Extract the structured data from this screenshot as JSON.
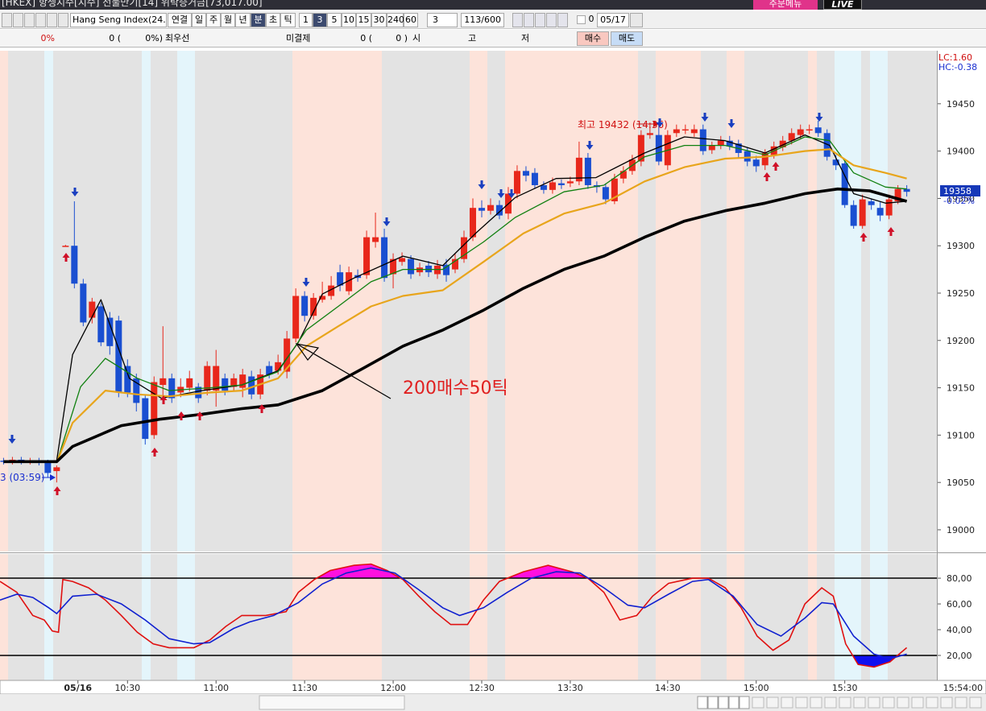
{
  "window": {
    "title": "[HKEX] 항셍지수[지수] 선물만기[14] 위탁증거금[73,017.00]",
    "menu_button": "주문메뉴",
    "live": "LIVE"
  },
  "toolbar": {
    "symbol": "Hang Seng Index(24.0",
    "buttons": [
      "연결",
      "일",
      "주",
      "월",
      "년",
      "분",
      "초",
      "틱",
      "1",
      "3",
      "5",
      "10",
      "15",
      "30",
      "240",
      "60"
    ],
    "period": "3",
    "count": "113/600",
    "check_value": "0",
    "date": "05/17"
  },
  "quote_bar": {
    "rate": "0%",
    "volume": "0 (",
    "volume_rate": "0%)",
    "best": "최우선",
    "open_interest": "미결제",
    "oi_value": "0 (",
    "oi_change": "0 )",
    "open": "시",
    "high": "고",
    "low": "저",
    "buy": "매수",
    "sell": "매도"
  },
  "chart_data": [
    {
      "type": "candlestick",
      "xlim": [
        -0.4,
        105.4
      ],
      "ylim": [
        18977,
        19506
      ],
      "yticks": [
        19000,
        19050,
        19100,
        19150,
        19200,
        19250,
        19300,
        19350,
        19400,
        19450
      ],
      "xticks": [
        {
          "value": 8.4,
          "label": "05/16"
        },
        {
          "value": 14,
          "label": "10:30"
        },
        {
          "value": 24,
          "label": "11:00"
        },
        {
          "value": 34,
          "label": "11:30"
        },
        {
          "value": 44,
          "label": "12:00"
        },
        {
          "value": 54,
          "label": "12:30"
        },
        {
          "value": 64,
          "label": "13:30"
        },
        {
          "value": 75,
          "label": "14:30"
        },
        {
          "value": 85,
          "label": "15:00"
        },
        {
          "value": 95,
          "label": "15:30"
        }
      ],
      "x": [
        0,
        1,
        2,
        3,
        4,
        5,
        6,
        7,
        8,
        9,
        10,
        11,
        12,
        13,
        14,
        15,
        16,
        17,
        18,
        19,
        20,
        21,
        22,
        23,
        24,
        25,
        26,
        27,
        28,
        29,
        30,
        31,
        32,
        33,
        34,
        35,
        36,
        37,
        38,
        39,
        40,
        41,
        42,
        43,
        44,
        45,
        46,
        47,
        48,
        49,
        50,
        51,
        52,
        53,
        54,
        55,
        56,
        57,
        58,
        59,
        60,
        61,
        62,
        63,
        64,
        65,
        66,
        67,
        68,
        69,
        70,
        71,
        72,
        73,
        74,
        75,
        76,
        77,
        78,
        79,
        80,
        81,
        82,
        83,
        84,
        85,
        86,
        87,
        88,
        89,
        90,
        91,
        92,
        93,
        94,
        95,
        96,
        97,
        98,
        99,
        100,
        101,
        102
      ],
      "open": [
        19073,
        19072,
        19074,
        19072,
        19073,
        19071,
        19062,
        19300,
        19300,
        19260,
        19224,
        19236,
        19224,
        19221,
        19173,
        19160,
        19139,
        19100,
        19153,
        19160,
        19145,
        19150,
        19151,
        19147,
        19147,
        19160,
        19151,
        19150,
        19162,
        19143,
        19173,
        19168,
        19167,
        19202,
        19247,
        19226,
        19243,
        19247,
        19272,
        19252,
        19269,
        19269,
        19304,
        19309,
        19270,
        19283,
        19286,
        19272,
        19279,
        19270,
        19280,
        19275,
        19286,
        19309,
        19340,
        19337,
        19343,
        19334,
        19355,
        19379,
        19377,
        19364,
        19359,
        19366,
        19366,
        19368,
        19393,
        19364,
        19362,
        19347,
        19371,
        19379,
        19389,
        19417,
        19417,
        19385,
        19419,
        19422,
        19419,
        19423,
        19401,
        19406,
        19411,
        19408,
        19400,
        19391,
        19385,
        19396,
        19404,
        19411,
        19417,
        19422,
        19425,
        19419,
        19391,
        19387,
        19343,
        19321,
        19347,
        19340,
        19332,
        19347,
        19360
      ],
      "high": [
        19076,
        19077,
        19077,
        19076,
        19076,
        19074,
        19068,
        19301,
        19347,
        19265,
        19245,
        19240,
        19230,
        19226,
        19180,
        19165,
        19143,
        19162,
        19215,
        19165,
        19160,
        19168,
        19155,
        19178,
        19190,
        19165,
        19165,
        19170,
        19168,
        19170,
        19178,
        19185,
        19210,
        19255,
        19252,
        19250,
        19262,
        19268,
        19280,
        19278,
        19275,
        19316,
        19335,
        19318,
        19292,
        19293,
        19290,
        19282,
        19284,
        19285,
        19286,
        19292,
        19316,
        19350,
        19348,
        19350,
        19348,
        19362,
        19385,
        19384,
        19382,
        19368,
        19372,
        19370,
        19373,
        19410,
        19398,
        19368,
        19366,
        19376,
        19384,
        19396,
        19422,
        19430,
        19432,
        19422,
        19428,
        19428,
        19428,
        19428,
        19410,
        19416,
        19416,
        19412,
        19404,
        19395,
        19402,
        19410,
        19416,
        19424,
        19428,
        19428,
        19432,
        19423,
        19396,
        19392,
        19348,
        19354,
        19350,
        19346,
        19354,
        19364,
        19364
      ],
      "low": [
        19069,
        19069,
        19069,
        19069,
        19068,
        19055,
        19050,
        19299,
        19255,
        19215,
        19218,
        19194,
        19185,
        19140,
        19140,
        19125,
        19090,
        19096,
        19140,
        19134,
        19140,
        19146,
        19134,
        19142,
        19130,
        19142,
        19146,
        19140,
        19138,
        19138,
        19160,
        19164,
        19160,
        19198,
        19220,
        19222,
        19240,
        19243,
        19252,
        19248,
        19262,
        19265,
        19298,
        19262,
        19255,
        19279,
        19265,
        19268,
        19267,
        19265,
        19262,
        19271,
        19282,
        19305,
        19330,
        19333,
        19328,
        19328,
        19350,
        19368,
        19360,
        19355,
        19355,
        19360,
        19362,
        19364,
        19360,
        19356,
        19344,
        19344,
        19366,
        19375,
        19384,
        19413,
        19385,
        19380,
        19415,
        19418,
        19415,
        19396,
        19397,
        19402,
        19401,
        19392,
        19384,
        19378,
        19380,
        19392,
        19400,
        19407,
        19413,
        19418,
        19415,
        19390,
        19380,
        19340,
        19318,
        19318,
        19338,
        19326,
        19328,
        19344,
        19352
      ],
      "close": [
        19072,
        19074,
        19072,
        19073,
        19071,
        19060,
        19066,
        19300,
        19260,
        19219,
        19241,
        19198,
        19194,
        19145,
        19145,
        19134,
        19096,
        19156,
        19160,
        19139,
        19151,
        19160,
        19139,
        19173,
        19173,
        19147,
        19160,
        19164,
        19143,
        19164,
        19164,
        19177,
        19202,
        19247,
        19226,
        19245,
        19247,
        19258,
        19258,
        19272,
        19266,
        19309,
        19309,
        19266,
        19286,
        19287,
        19270,
        19277,
        19272,
        19279,
        19269,
        19286,
        19309,
        19340,
        19337,
        19343,
        19332,
        19355,
        19379,
        19374,
        19364,
        19359,
        19367,
        19364,
        19368,
        19393,
        19364,
        19362,
        19349,
        19371,
        19379,
        19391,
        19417,
        19419,
        19389,
        19417,
        19423,
        19423,
        19423,
        19400,
        19406,
        19411,
        19405,
        19398,
        19389,
        19384,
        19398,
        19405,
        19411,
        19419,
        19423,
        19423,
        19419,
        19394,
        19385,
        19343,
        19321,
        19349,
        19343,
        19332,
        19349,
        19360,
        19357
      ],
      "up_color": "#e8271b",
      "down_color": "#1a4fd1",
      "lines": [
        {
          "color": "#000000",
          "width": 1.3,
          "x": [
            6,
            7.8,
            11,
            14.2,
            17.8,
            22.4,
            26.9,
            31,
            33.3,
            36,
            39.6,
            45.1,
            49.6,
            53.3,
            57.8,
            62.4,
            66.9,
            72.4,
            76.9,
            81.5,
            86,
            90.5,
            93.3,
            96,
            99.6,
            102
          ],
          "values": [
            19073,
            19185,
            19243,
            19160,
            19139,
            19147,
            19153,
            19168,
            19198,
            19249,
            19266,
            19289,
            19279,
            19313,
            19351,
            19371,
            19372,
            19398,
            19415,
            19411,
            19398,
            19417,
            19406,
            19355,
            19345,
            19347
          ]
        },
        {
          "color": "#108010",
          "width": 1.3,
          "x": [
            6,
            8.7,
            11.5,
            15.1,
            18.7,
            23.3,
            26.9,
            31,
            34.2,
            37.8,
            41.5,
            45.1,
            49.6,
            54.2,
            57.8,
            63.3,
            67.8,
            72.4,
            76.9,
            81.5,
            86,
            90.5,
            93.3,
            96,
            99.6,
            102
          ],
          "values": [
            19071,
            19151,
            19181,
            19160,
            19147,
            19150,
            19153,
            19167,
            19211,
            19236,
            19262,
            19275,
            19275,
            19304,
            19330,
            19357,
            19364,
            19394,
            19406,
            19406,
            19396,
            19415,
            19411,
            19377,
            19362,
            19360
          ]
        },
        {
          "color": "#e8a51c",
          "width": 2.2,
          "x": [
            6,
            7.8,
            11.5,
            15.1,
            18.7,
            23.3,
            26.9,
            31,
            34.2,
            37.8,
            41.5,
            45.1,
            49.6,
            54.2,
            58.7,
            63.3,
            67.8,
            72.4,
            76.9,
            81.5,
            86,
            90.5,
            93.3,
            96,
            99.6,
            102
          ],
          "values": [
            19071,
            19113,
            19147,
            19143,
            19141,
            19145,
            19147,
            19160,
            19194,
            19215,
            19236,
            19247,
            19253,
            19283,
            19313,
            19334,
            19345,
            19368,
            19383,
            19392,
            19394,
            19400,
            19402,
            19385,
            19377,
            19371
          ]
        },
        {
          "color": "#000000",
          "width": 3.6,
          "x": [
            0,
            6,
            7.8,
            13.3,
            17.8,
            22.4,
            26.9,
            31,
            36,
            40.5,
            45.1,
            49.6,
            54.2,
            58.7,
            63.3,
            67.8,
            72.4,
            76.9,
            81.5,
            86,
            90.5,
            94.2,
            97.8,
            102
          ],
          "values": [
            19072,
            19072,
            19088,
            19110,
            19117,
            19122,
            19128,
            19132,
            19147,
            19170,
            19194,
            19211,
            19232,
            19255,
            19275,
            19289,
            19309,
            19326,
            19337,
            19345,
            19355,
            19360,
            19358,
            19347
          ]
        }
      ],
      "annotations": [
        {
          "text": "최고 19432 (14:36)",
          "color": "#d01010"
        },
        {
          "text": "3 (03:59)",
          "color": "#1a2fd0"
        },
        {
          "text": "200매수50틱",
          "color": "#e02020"
        }
      ],
      "last_price": 19358,
      "last_change": "-0.02%",
      "lc_label": "LC:1.60",
      "hc_label": "HC:-0.38"
    },
    {
      "type": "line",
      "xlim": [
        -0.4,
        105.4
      ],
      "ylim": [
        0.6,
        98.8
      ],
      "yticks": [
        {
          "value": 20,
          "label": "20,00"
        },
        {
          "value": 40,
          "label": "40,00"
        },
        {
          "value": 60,
          "label": "60,00"
        },
        {
          "value": 80,
          "label": "80,00"
        }
      ],
      "hlines": [
        20,
        80
      ],
      "overbought_fill": "#ff10e0",
      "oversold_fill": "#1010f0",
      "series": [
        {
          "color": "#e01010",
          "x": [
            -0.4,
            1.5,
            3.3,
            4.6,
            5.5,
            6.2,
            6.7,
            7.8,
            9.6,
            11.5,
            13.3,
            15.1,
            16.9,
            18.7,
            21.5,
            23.3,
            25.1,
            26.9,
            29.6,
            31.9,
            33.3,
            35.1,
            36.9,
            39.6,
            41.5,
            43.3,
            45.1,
            46.9,
            48.7,
            50.5,
            52.4,
            54.2,
            56,
            58.7,
            61.5,
            64.2,
            66,
            67.8,
            69.6,
            71.5,
            73.3,
            75.1,
            77.8,
            79.6,
            81.5,
            83.3,
            85.1,
            86.9,
            88.7,
            90.5,
            92.4,
            93.7,
            95.1,
            96.5,
            98.3,
            100.1,
            102
          ],
          "values": [
            77.5,
            69,
            51,
            47.5,
            39,
            38,
            79,
            77.5,
            72.5,
            63,
            51,
            38,
            29,
            26,
            26,
            32,
            42.5,
            51,
            51,
            54,
            69,
            79,
            86,
            90,
            91,
            86,
            79,
            66,
            54,
            44,
            44,
            63,
            77.5,
            85,
            90,
            85,
            80,
            69,
            47.5,
            51,
            66,
            76,
            80,
            80,
            72.5,
            57,
            35,
            24,
            32,
            60,
            72.5,
            66,
            29,
            13,
            11,
            15,
            26
          ]
        },
        {
          "color": "#1020d0",
          "x": [
            -0.4,
            1.5,
            3.3,
            5.1,
            6,
            7.8,
            10.5,
            13.3,
            16,
            18.7,
            21.5,
            23.3,
            26,
            27.8,
            30.5,
            33.3,
            36,
            38.7,
            41.5,
            44.2,
            46.9,
            49.6,
            51.5,
            54.2,
            56.9,
            59.6,
            62.4,
            65.1,
            67.8,
            70.5,
            72.4,
            75.1,
            77.8,
            79.6,
            82.4,
            85.1,
            87.8,
            90.5,
            92.4,
            93.7,
            96,
            98.3,
            100.1,
            102
          ],
          "values": [
            63,
            67.5,
            65,
            57,
            52.5,
            66,
            67.5,
            60,
            47.5,
            33,
            29,
            30,
            41,
            46,
            51,
            61,
            75.5,
            84,
            88,
            84,
            71,
            57,
            51,
            57,
            69,
            80,
            85,
            84,
            72.5,
            59,
            57,
            67.5,
            77.5,
            79,
            66,
            44,
            35,
            49,
            61,
            60,
            35,
            21,
            17.5,
            21
          ]
        }
      ]
    }
  ],
  "clock": "15:54:00"
}
